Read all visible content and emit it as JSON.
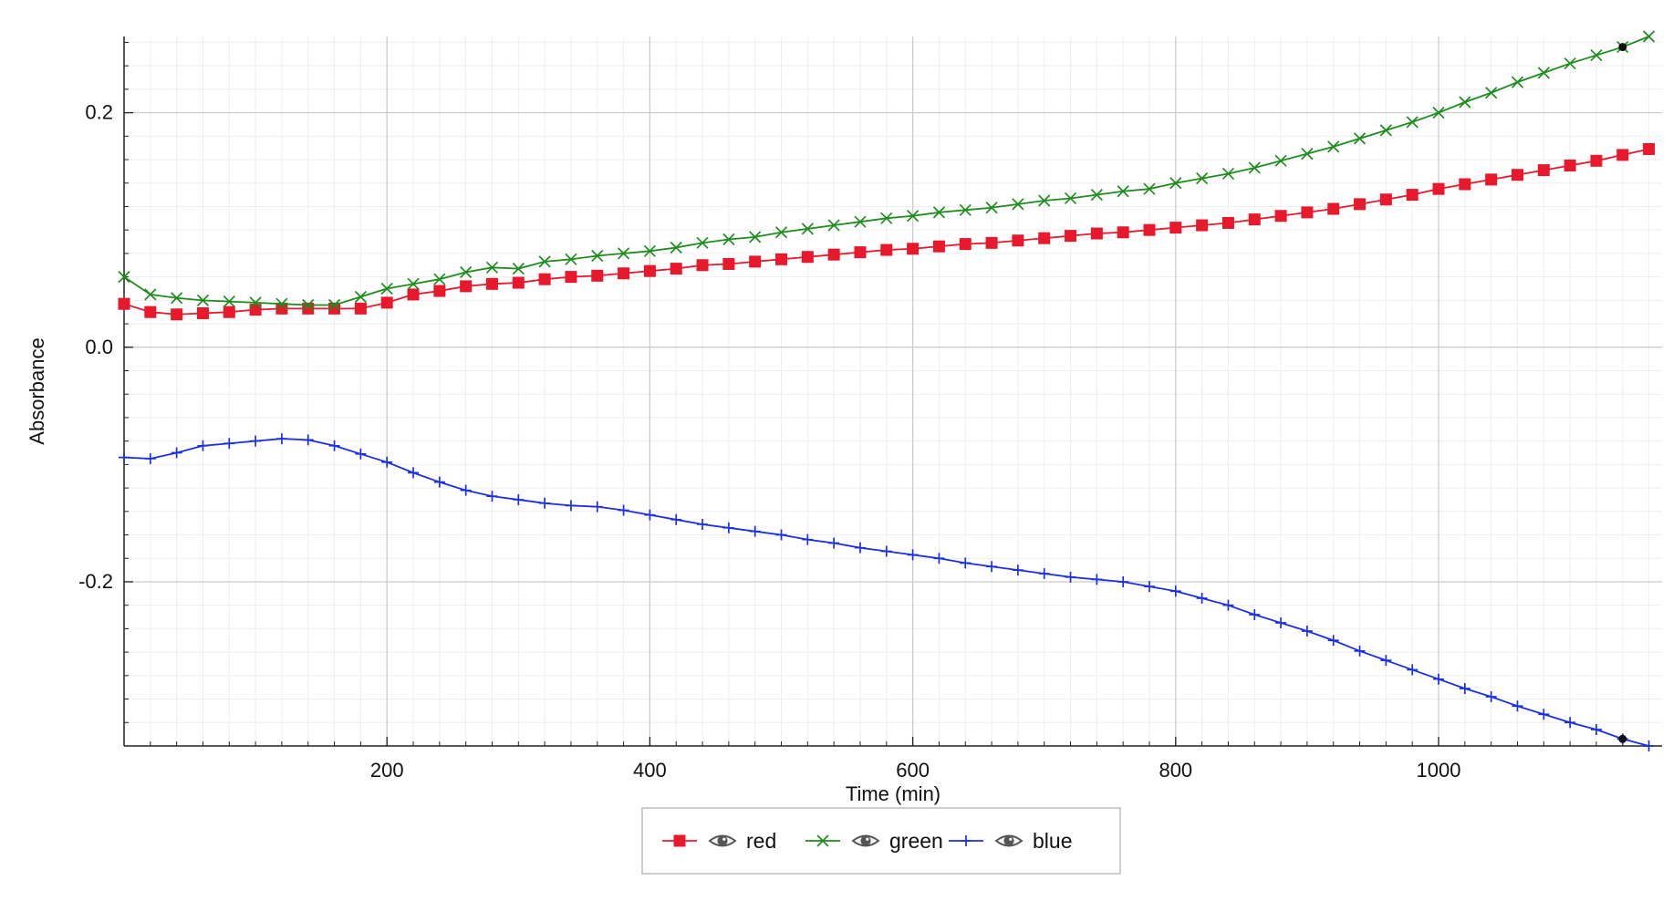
{
  "chart_data": {
    "type": "line",
    "title": "",
    "xlabel": "Time (min)",
    "ylabel": "Absorbance",
    "xlim": [
      0,
      1170
    ],
    "ylim": [
      -0.34,
      0.265
    ],
    "x_ticks": [
      200,
      400,
      600,
      800,
      1000
    ],
    "y_ticks": [
      -0.2,
      0.0,
      0.2
    ],
    "x_tick_labels": [
      "200",
      "400",
      "600",
      "800",
      "1000"
    ],
    "y_tick_labels": [
      "-0.2",
      "0.0",
      "0.2"
    ],
    "grid": true,
    "legend_position": "bottom-center",
    "x": [
      0,
      20,
      40,
      60,
      80,
      100,
      120,
      140,
      160,
      180,
      200,
      220,
      240,
      260,
      280,
      300,
      320,
      340,
      360,
      380,
      400,
      420,
      440,
      460,
      480,
      500,
      520,
      540,
      560,
      580,
      600,
      620,
      640,
      660,
      680,
      700,
      720,
      740,
      760,
      780,
      800,
      820,
      840,
      860,
      880,
      900,
      920,
      940,
      960,
      980,
      1000,
      1020,
      1040,
      1060,
      1080,
      1100,
      1120,
      1140,
      1160
    ],
    "series": [
      {
        "name": "red",
        "color": "#e8192c",
        "marker": "square",
        "values": [
          0.037,
          0.03,
          0.028,
          0.029,
          0.03,
          0.032,
          0.033,
          0.033,
          0.033,
          0.033,
          0.038,
          0.045,
          0.048,
          0.052,
          0.054,
          0.055,
          0.058,
          0.06,
          0.061,
          0.063,
          0.065,
          0.067,
          0.07,
          0.071,
          0.073,
          0.075,
          0.077,
          0.079,
          0.081,
          0.083,
          0.084,
          0.086,
          0.088,
          0.089,
          0.091,
          0.093,
          0.095,
          0.097,
          0.098,
          0.1,
          0.102,
          0.104,
          0.106,
          0.109,
          0.112,
          0.115,
          0.118,
          0.122,
          0.126,
          0.13,
          0.135,
          0.139,
          0.143,
          0.147,
          0.151,
          0.155,
          0.159,
          0.164,
          0.169
        ]
      },
      {
        "name": "green",
        "color": "#1e8c1e",
        "marker": "x",
        "values": [
          0.06,
          0.045,
          0.042,
          0.04,
          0.039,
          0.038,
          0.037,
          0.036,
          0.036,
          0.043,
          0.05,
          0.054,
          0.058,
          0.064,
          0.068,
          0.067,
          0.073,
          0.075,
          0.078,
          0.08,
          0.082,
          0.085,
          0.089,
          0.092,
          0.094,
          0.098,
          0.101,
          0.104,
          0.107,
          0.11,
          0.112,
          0.115,
          0.117,
          0.119,
          0.122,
          0.125,
          0.127,
          0.13,
          0.133,
          0.135,
          0.14,
          0.144,
          0.148,
          0.153,
          0.159,
          0.165,
          0.171,
          0.178,
          0.185,
          0.192,
          0.2,
          0.209,
          0.217,
          0.226,
          0.234,
          0.242,
          0.249,
          0.256,
          0.265
        ]
      },
      {
        "name": "blue",
        "color": "#1c2fe8",
        "marker": "plus",
        "values": [
          -0.094,
          -0.095,
          -0.09,
          -0.084,
          -0.082,
          -0.08,
          -0.078,
          -0.079,
          -0.084,
          -0.091,
          -0.098,
          -0.107,
          -0.115,
          -0.122,
          -0.127,
          -0.13,
          -0.133,
          -0.135,
          -0.136,
          -0.139,
          -0.143,
          -0.147,
          -0.151,
          -0.154,
          -0.157,
          -0.16,
          -0.164,
          -0.167,
          -0.171,
          -0.174,
          -0.177,
          -0.18,
          -0.184,
          -0.187,
          -0.19,
          -0.193,
          -0.196,
          -0.198,
          -0.2,
          -0.204,
          -0.208,
          -0.214,
          -0.22,
          -0.228,
          -0.235,
          -0.242,
          -0.25,
          -0.259,
          -0.267,
          -0.275,
          -0.283,
          -0.291,
          -0.298,
          -0.306,
          -0.313,
          -0.32,
          -0.326,
          -0.334,
          -0.34
        ]
      }
    ]
  },
  "legend": {
    "items": [
      {
        "label": "red",
        "color": "#e8192c",
        "marker": "square",
        "icon": "eye-icon"
      },
      {
        "label": "green",
        "color": "#1e8c1e",
        "marker": "x",
        "icon": "eye-icon"
      },
      {
        "label": "blue",
        "color": "#1c2fe8",
        "marker": "plus",
        "icon": "eye-icon"
      }
    ]
  }
}
